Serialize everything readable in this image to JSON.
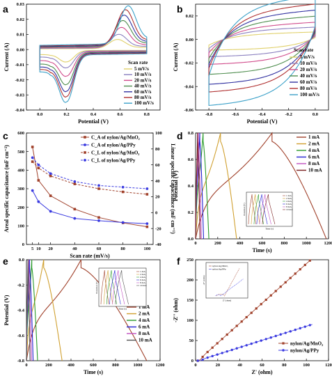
{
  "chart_data": [
    {
      "panel": "a",
      "type": "line",
      "xlabel": "Potential (V)",
      "ylabel": "Current (A)",
      "xlim": [
        -0.1,
        0.9
      ],
      "ylim": [
        -0.04,
        0.03
      ],
      "xticks": [
        "0.0",
        "0.2",
        "0.4",
        "0.6",
        "0.8"
      ],
      "xtick_values": [
        0,
        0.2,
        0.4,
        0.6,
        0.8
      ],
      "yticks": [
        "-0.04",
        "-0.03",
        "-0.02",
        "-0.01",
        "0.00",
        "0.01",
        "0.02",
        "0.03"
      ],
      "ytick_values": [
        -0.04,
        -0.03,
        -0.02,
        -0.01,
        0,
        0.01,
        0.02,
        0.03
      ],
      "legend_title": "Scan rate",
      "legend": [
        "5   mV/s",
        "10  mV/s",
        "20  mV/s",
        "40  mV/s",
        "60  mV/s",
        "80  mV/s",
        "100 mV/s"
      ],
      "legend_position": "bottom-right",
      "series": [
        {
          "name": "5   mV/s",
          "color": "#e0d06a",
          "ox": 0.58,
          "oy": 0.006,
          "rx": 0.2,
          "ry": -0.0075,
          "ic": 0.0005
        },
        {
          "name": "10  mV/s",
          "color": "#8a7fbf",
          "ox": 0.59,
          "oy": 0.009,
          "rx": 0.2,
          "ry": -0.011,
          "ic": 0.0008
        },
        {
          "name": "20  mV/s",
          "color": "#d04a8a",
          "ox": 0.61,
          "oy": 0.013,
          "rx": 0.2,
          "ry": -0.016,
          "ic": 0.0012
        },
        {
          "name": "40  mV/s",
          "color": "#4c8c4c",
          "ox": 0.62,
          "oy": 0.017,
          "rx": 0.2,
          "ry": -0.021,
          "ic": 0.0016
        },
        {
          "name": "60  mV/s",
          "color": "#3030a0",
          "ox": 0.63,
          "oy": 0.02,
          "rx": 0.2,
          "ry": -0.025,
          "ic": 0.002
        },
        {
          "name": "80  mV/s",
          "color": "#b03030",
          "ox": 0.64,
          "oy": 0.023,
          "rx": 0.2,
          "ry": -0.028,
          "ic": 0.0024
        },
        {
          "name": "100 mV/s",
          "color": "#3aa0c8",
          "ox": 0.66,
          "oy": 0.025,
          "rx": 0.2,
          "ry": -0.031,
          "ic": 0.0028
        }
      ]
    },
    {
      "panel": "b",
      "type": "line",
      "xlabel": "Potential (V)",
      "ylabel": "Current (A)",
      "xlim": [
        -0.9,
        0.1
      ],
      "ylim": [
        -0.06,
        0.03
      ],
      "xticks": [
        "-0.8",
        "-0.6",
        "-0.4",
        "-0.2",
        "0.0"
      ],
      "xtick_values": [
        -0.8,
        -0.6,
        -0.4,
        -0.2,
        0
      ],
      "yticks": [
        "-0.06",
        "-0.04",
        "-0.02",
        "0.00",
        "0.02"
      ],
      "ytick_values": [
        -0.06,
        -0.04,
        -0.02,
        0,
        0.02
      ],
      "legend_title": "Scan rate",
      "legend": [
        "5   mV/s",
        "10  mV/s",
        "20  mV/s",
        "40  mV/s",
        "60  mV/s",
        "80  mV/s",
        "100 mV/s"
      ],
      "legend_position": "bottom-right",
      "series": [
        {
          "name": "5   mV/s",
          "color": "#e0d06a",
          "top": 0.004,
          "bot": -0.008,
          "w": 0.004
        },
        {
          "name": "10  mV/s",
          "color": "#8a7fbf",
          "top": 0.007,
          "bot": -0.013,
          "w": 0.006
        },
        {
          "name": "20  mV/s",
          "color": "#d04a8a",
          "top": 0.01,
          "bot": -0.019,
          "w": 0.008
        },
        {
          "name": "40  mV/s",
          "color": "#4c8c4c",
          "top": 0.014,
          "bot": -0.027,
          "w": 0.01
        },
        {
          "name": "60  mV/s",
          "color": "#3030a0",
          "top": 0.018,
          "bot": -0.035,
          "w": 0.012
        },
        {
          "name": "80  mV/s",
          "color": "#b03030",
          "top": 0.022,
          "bot": -0.041,
          "w": 0.014
        },
        {
          "name": "100 mV/s",
          "color": "#3aa0c8",
          "top": 0.028,
          "bot": -0.052,
          "w": 0.016
        }
      ]
    },
    {
      "panel": "c",
      "type": "line",
      "xlabel": "Scan rate (mV/s)",
      "ylabel": "Areal specific capacitance (mF cm⁻²)",
      "ylabel_right": "Linear specific capacitance (mF cm⁻¹)",
      "xlim": [
        0,
        105
      ],
      "ylim": [
        0,
        600
      ],
      "ylim_right": [
        -40,
        100
      ],
      "x": [
        5,
        10,
        20,
        40,
        60,
        80,
        100
      ],
      "xticks": [
        "5",
        "10",
        "20",
        "40",
        "60",
        "80",
        "100"
      ],
      "xtick_values": [
        5,
        10,
        20,
        40,
        60,
        80,
        100
      ],
      "yticks": [
        "0",
        "100",
        "200",
        "300",
        "400",
        "500",
        "600"
      ],
      "ytick_values": [
        0,
        100,
        200,
        300,
        400,
        500,
        600
      ],
      "yticks_right": [
        "-40",
        "-20",
        "0",
        "20",
        "40",
        "60",
        "80",
        "100"
      ],
      "ytick_values_right": [
        -40,
        -20,
        0,
        20,
        40,
        60,
        80,
        100
      ],
      "legend_position": "top-right",
      "series": [
        {
          "name": "C_A of nylon/Ag/MnO₂",
          "color": "#a0402a",
          "marker": "square",
          "dashed": false,
          "axis": "left",
          "values": [
            525,
            345,
            262,
            190,
            145,
            116,
            95
          ]
        },
        {
          "name": "C_A of nylon/Ag/PPy",
          "color": "#3a3ae0",
          "marker": "circle",
          "dashed": false,
          "axis": "left",
          "values": [
            290,
            230,
            178,
            140,
            128,
            118,
            112
          ]
        },
        {
          "name": "C_L of nylon/Ag/MnO₂",
          "color": "#a0402a",
          "marker": "square",
          "dashed": true,
          "axis": "right",
          "values": [
            64,
            56,
            46,
            36,
            30,
            26,
            23
          ]
        },
        {
          "name": "C_L of nylon/Ag/PPy",
          "color": "#3a3ae0",
          "marker": "circle",
          "dashed": true,
          "axis": "right",
          "values": [
            69,
            60,
            49,
            39,
            34,
            32,
            30
          ]
        }
      ]
    },
    {
      "panel": "d",
      "type": "line",
      "xlabel": "Time (s)",
      "ylabel": "Potential (V)",
      "xlim": [
        0,
        1200
      ],
      "ylim": [
        0,
        0.8
      ],
      "xticks": [
        "0",
        "200",
        "400",
        "600",
        "800",
        "1000",
        "1200"
      ],
      "xtick_values": [
        0,
        200,
        400,
        600,
        800,
        1000,
        1200
      ],
      "yticks": [
        "0.0",
        "0.2",
        "0.4",
        "0.6",
        "0.8"
      ],
      "ytick_values": [
        0,
        0.2,
        0.4,
        0.6,
        0.8
      ],
      "legend": [
        "1 mA",
        "2 mA",
        "4 mA",
        "6 mA",
        "8 mA",
        "10 mA"
      ],
      "legend_position": "top-right",
      "inset_legend": [
        "1 mA",
        "2 mA",
        "4 mA",
        "6 mA",
        "8 mA",
        "10 mA"
      ],
      "inset_xlabel": "Time (s)",
      "inset_ylabel": "Potential (V)",
      "series": [
        {
          "name": "1 mA",
          "color": "#a0402a",
          "tc": 690,
          "td": 1180
        },
        {
          "name": "2 mA",
          "color": "#d0a030",
          "tc": 225,
          "td": 370
        },
        {
          "name": "4 mA",
          "color": "#2a9a2a",
          "tc": 68,
          "td": 120
        },
        {
          "name": "6 mA",
          "color": "#2020d0",
          "tc": 38,
          "td": 72
        },
        {
          "name": "8 mA",
          "color": "#c050c0",
          "tc": 25,
          "td": 52
        },
        {
          "name": "10 mA",
          "color": "#7a2020",
          "tc": 18,
          "td": 40
        }
      ]
    },
    {
      "panel": "e",
      "type": "line",
      "xlabel": "Time (s)",
      "ylabel": "Potential (V)",
      "xlim": [
        0,
        1200
      ],
      "ylim": [
        -0.8,
        0
      ],
      "xticks": [
        "0",
        "200",
        "400",
        "600",
        "800",
        "1000",
        "1200"
      ],
      "xtick_values": [
        0,
        200,
        400,
        600,
        800,
        1000,
        1200
      ],
      "yticks": [
        "-0.8",
        "-0.6",
        "-0.4",
        "-0.2",
        "0.0"
      ],
      "ytick_values": [
        -0.8,
        -0.6,
        -0.4,
        -0.2,
        0
      ],
      "legend": [
        "1 mA",
        "2 mA",
        "4 mA",
        "6 mA",
        "8 mA",
        "10 mA"
      ],
      "legend_position": "bottom-right",
      "inset_legend": [
        "1 mA",
        "2 mA",
        "4 mA",
        "6 mA",
        "8 mA",
        "10 mA"
      ],
      "inset_xlabel": "Time (s)",
      "inset_ylabel": "Potential (V)",
      "series": [
        {
          "name": "1 mA",
          "color": "#a0402a",
          "tc": 490,
          "td": 1080
        },
        {
          "name": "2 mA",
          "color": "#d0a030",
          "tc": 155,
          "td": 320
        },
        {
          "name": "4 mA",
          "color": "#2a9a2a",
          "tc": 48,
          "td": 100
        },
        {
          "name": "6 mA",
          "color": "#2020d0",
          "tc": 28,
          "td": 60
        },
        {
          "name": "8 mA",
          "color": "#c050c0",
          "tc": 20,
          "td": 45
        },
        {
          "name": "10 mA",
          "color": "#555555",
          "tc": 14,
          "td": 32
        }
      ]
    },
    {
      "panel": "f",
      "type": "scatter",
      "xlabel": "Z' (ohm)",
      "ylabel": "-Z'' (ohm)",
      "xlim": [
        0,
        120
      ],
      "ylim": [
        0,
        250
      ],
      "xticks": [
        "0",
        "20",
        "40",
        "60",
        "80",
        "100",
        "120"
      ],
      "xtick_values": [
        0,
        20,
        40,
        60,
        80,
        100,
        120
      ],
      "yticks": [
        "0",
        "50",
        "100",
        "150",
        "200",
        "250"
      ],
      "ytick_values": [
        0,
        50,
        100,
        150,
        200,
        250
      ],
      "legend": [
        "nylon/Ag/MnO₂",
        "nylon/Ag/PPy"
      ],
      "legend_position": "bottom-right",
      "inset_legend": [
        "nylon/Ag/MnO₂",
        "nylon/Ag/PPy"
      ],
      "inset_xlabel": "Z' (ohm)",
      "inset_ylabel": "-Z'' (ohm)",
      "series": [
        {
          "name": "nylon/Ag/MnO₂",
          "color": "#a0402a",
          "marker": "square",
          "x0": 2,
          "slope": 2.45,
          "xmax": 105
        },
        {
          "name": "nylon/Ag/PPy",
          "color": "#3a3ae0",
          "marker": "circle",
          "x0": 2,
          "slope": 0.87,
          "xmax": 106
        }
      ]
    }
  ]
}
